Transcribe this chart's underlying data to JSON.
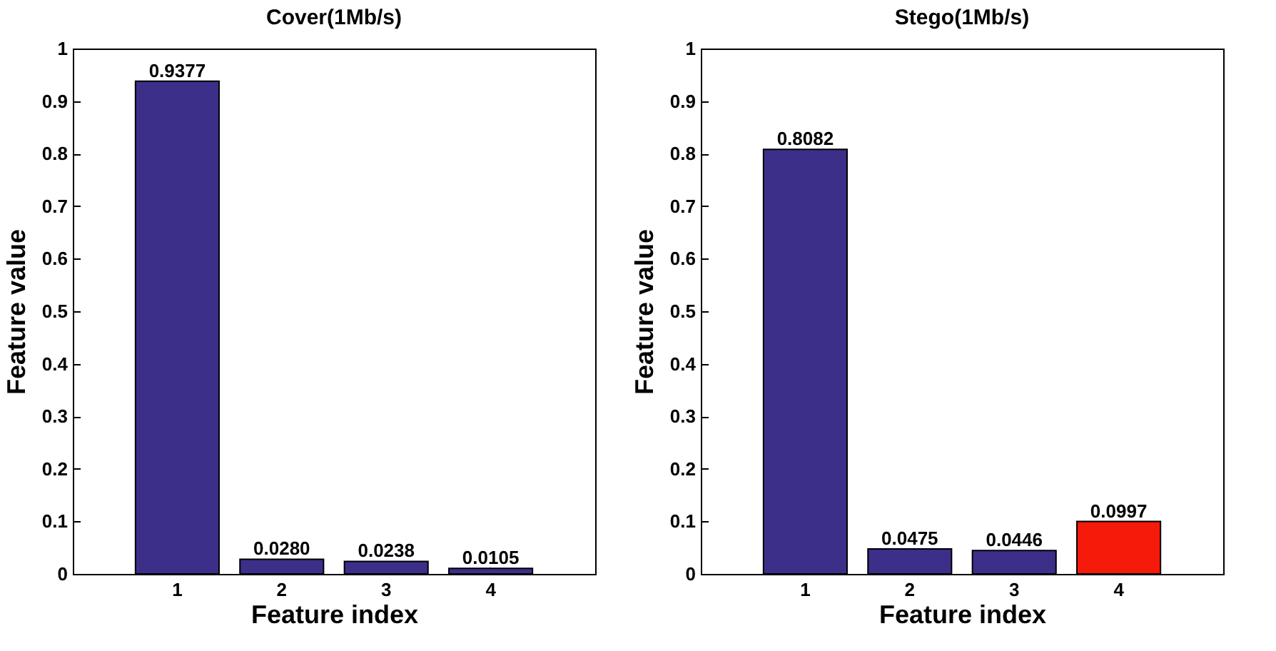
{
  "chart_data": [
    {
      "type": "bar",
      "title": "Cover(1Mb/s)",
      "xlabel": "Feature index",
      "ylabel": "Feature value",
      "categories": [
        "1",
        "2",
        "3",
        "4"
      ],
      "values": [
        0.9377,
        0.028,
        0.0238,
        0.0105
      ],
      "colors": [
        "#3c2f8a",
        "#3c2f8a",
        "#3c2f8a",
        "#3c2f8a"
      ],
      "value_labels": [
        "0.9377",
        "0.0280",
        "0.0238",
        "0.0105"
      ],
      "ylim": [
        0,
        1
      ],
      "yticks": [
        0,
        0.1,
        0.2,
        0.3,
        0.4,
        0.5,
        0.6,
        0.7,
        0.8,
        0.9,
        1
      ]
    },
    {
      "type": "bar",
      "title": "Stego(1Mb/s)",
      "xlabel": "Feature index",
      "ylabel": "Feature value",
      "categories": [
        "1",
        "2",
        "3",
        "4"
      ],
      "values": [
        0.8082,
        0.0475,
        0.0446,
        0.0997
      ],
      "colors": [
        "#3c2f8a",
        "#3c2f8a",
        "#3c2f8a",
        "#f51a0a"
      ],
      "value_labels": [
        "0.8082",
        "0.0475",
        "0.0446",
        "0.0997"
      ],
      "ylim": [
        0,
        1
      ],
      "yticks": [
        0,
        0.1,
        0.2,
        0.3,
        0.4,
        0.5,
        0.6,
        0.7,
        0.8,
        0.9,
        1
      ]
    }
  ]
}
